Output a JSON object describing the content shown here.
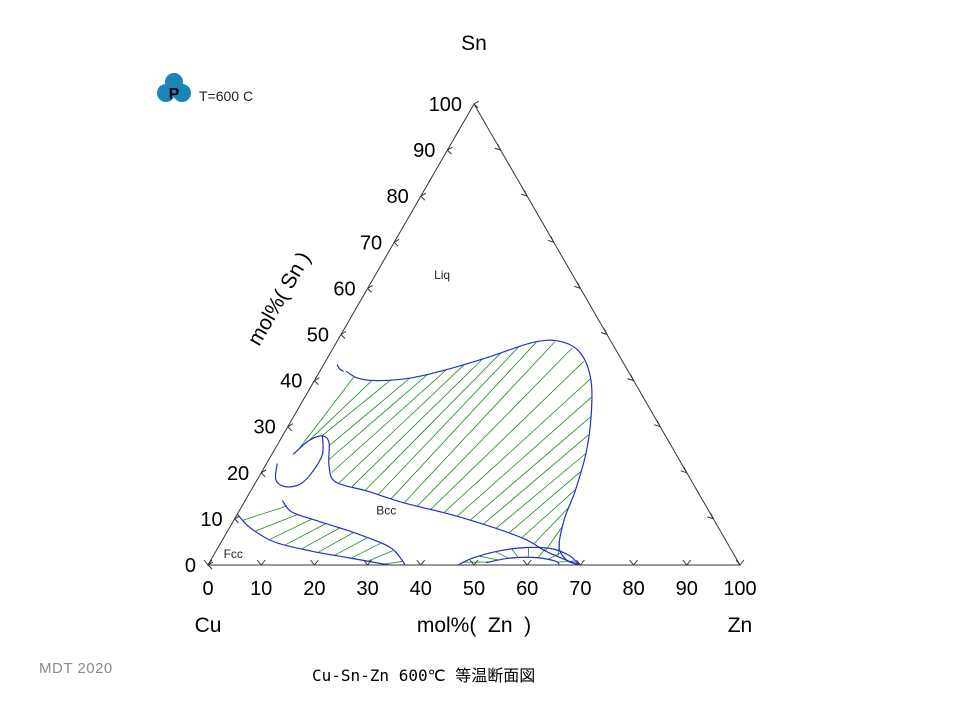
{
  "chart_data": {
    "type": "ternary",
    "corners": {
      "top": "Sn",
      "left": "Cu",
      "right": "Zn"
    },
    "axis_titles": {
      "left": "mol%( Sn )",
      "bottom": "mol%(  Zn  )"
    },
    "ticks": [
      0,
      10,
      20,
      30,
      40,
      50,
      60,
      70,
      80,
      90,
      100
    ],
    "annotation": "T=600 C",
    "logo_letter": "P",
    "regions": [
      {
        "name": "Liq",
        "Zn": 13,
        "Sn": 62
      },
      {
        "name": "Bcc",
        "Zn": 28,
        "Sn": 11
      },
      {
        "name": "Fcc",
        "Zn": 4,
        "Sn": 1.5
      }
    ],
    "boundaries": [
      {
        "name": "liquid-boundary",
        "points": [
          [
            5,
            42
          ],
          [
            8,
            40.5
          ],
          [
            12,
            40
          ],
          [
            18,
            40.6
          ],
          [
            24,
            42.5
          ],
          [
            30,
            45
          ],
          [
            37,
            48.3
          ],
          [
            42,
            48.5
          ],
          [
            47,
            46
          ],
          [
            52,
            40
          ],
          [
            56,
            32
          ],
          [
            59,
            24
          ],
          [
            61,
            16
          ],
          [
            62,
            10
          ],
          [
            64,
            4
          ],
          [
            67,
            1
          ],
          [
            70,
            0
          ]
        ]
      },
      {
        "name": "bcc-liquid-boundary",
        "points": [
          [
            4,
            24
          ],
          [
            5.5,
            27
          ],
          [
            7.5,
            28
          ],
          [
            9.5,
            26.5
          ],
          [
            12,
            21.5
          ],
          [
            15,
            18
          ],
          [
            22,
            16
          ],
          [
            30,
            13.5
          ],
          [
            40,
            11
          ],
          [
            50,
            8
          ],
          [
            57,
            5.5
          ],
          [
            62,
            3
          ],
          [
            67,
            1
          ],
          [
            70,
            0
          ]
        ]
      },
      {
        "name": "cu-sn-compound-boundary",
        "points": [
          [
            2.5,
            43.5
          ],
          [
            3.5,
            42.5
          ],
          [
            4.5,
            42
          ]
        ]
      },
      {
        "name": "gamma-pocket-boundary",
        "points": [
          [
            2,
            22
          ],
          [
            3.5,
            18.5
          ],
          [
            6,
            17
          ],
          [
            8.5,
            17.5
          ],
          [
            9.5,
            20
          ],
          [
            9.5,
            24
          ],
          [
            7.5,
            28
          ]
        ]
      },
      {
        "name": "bcc-fcc-boundary-upper",
        "points": [
          [
            7,
            14
          ],
          [
            10,
            11.5
          ],
          [
            16,
            9.5
          ],
          [
            24,
            7
          ],
          [
            32,
            4
          ],
          [
            36,
            1
          ],
          [
            37,
            0
          ]
        ]
      },
      {
        "name": "bcc-fcc-boundary-lower",
        "points": [
          [
            0,
            11
          ],
          [
            4,
            8
          ],
          [
            10,
            5
          ],
          [
            18,
            3
          ],
          [
            26,
            1.5
          ],
          [
            34,
            0
          ]
        ]
      },
      {
        "name": "zn-rich-pocket",
        "points": [
          [
            47,
            0
          ],
          [
            49,
            1.5
          ],
          [
            53,
            3
          ],
          [
            58,
            3.8
          ],
          [
            63,
            3.5
          ],
          [
            67,
            2
          ],
          [
            69,
            0.6
          ],
          [
            70,
            0
          ]
        ]
      },
      {
        "name": "zn-rich-inner",
        "points": [
          [
            52,
            0.5
          ],
          [
            56,
            1.5
          ],
          [
            61,
            1.6
          ],
          [
            65,
            0.8
          ],
          [
            66,
            0
          ]
        ]
      }
    ],
    "tie_line_fans": [
      {
        "name": "liq-bcc-tie-lines",
        "from": "bcc-liquid-boundary",
        "to": "liquid-boundary",
        "count": 24,
        "start": 0.02,
        "end": 0.93
      },
      {
        "name": "fcc-bcc-tie-lines",
        "from": "bcc-fcc-boundary-lower",
        "to": "bcc-fcc-boundary-upper",
        "count": 10,
        "start": 0.05,
        "end": 0.97
      },
      {
        "name": "zn-pocket-tie-lines",
        "from": "zn-rich-inner",
        "to": "zn-rich-pocket",
        "count": 8,
        "start": 0.05,
        "end": 0.95
      }
    ],
    "ylabel": "mol%( Sn )",
    "xlabel": "mol%(  Zn  )",
    "grid": false
  },
  "footer": {
    "left": "MDT   2020",
    "caption": "Cu-Sn-Zn 600℃ 等温断面図"
  },
  "colors": {
    "axis": "#333333",
    "boundary": "#2230c8",
    "tie_line": "#1b8c1b",
    "logo": "#1a86b8"
  }
}
